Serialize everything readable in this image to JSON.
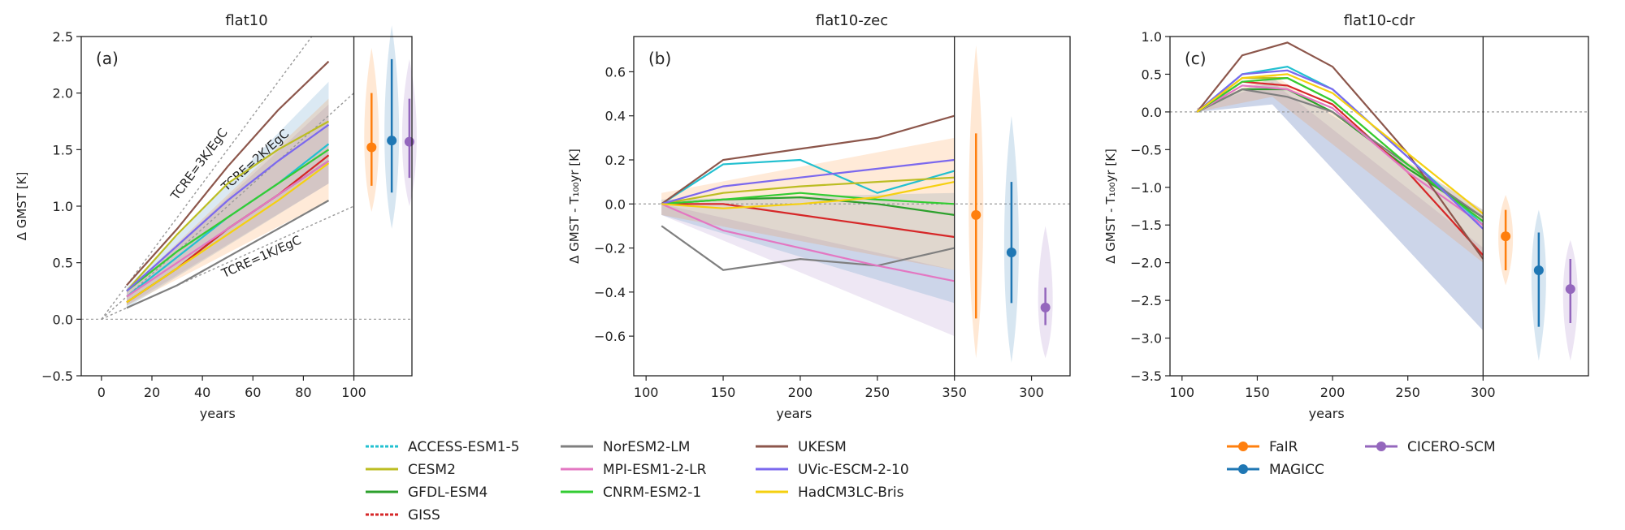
{
  "panels": [
    {
      "title": "flat10",
      "tag": "(a)",
      "ylabel": "Δ GMST [K]",
      "xlabel": "years",
      "xlim": [
        -8,
        100
      ],
      "ylim": [
        -0.5,
        2.5
      ],
      "xticks": [
        "0",
        "20",
        "40",
        "60",
        "80",
        "100"
      ],
      "yticks": [
        "−0.5",
        "0.0",
        "0.5",
        "1.0",
        "1.5",
        "2.0",
        "2.5"
      ],
      "tcre_labels": [
        "TCRE=3K/EgC",
        "TCRE=2K/EgC",
        "TCRE=1K/EgC"
      ]
    },
    {
      "title": "flat10-zec",
      "tag": "(b)",
      "ylabel": "Δ GMST - T₁₀₀yr [K]",
      "xlabel": "years",
      "xlim": [
        92,
        300
      ],
      "ylim": [
        -0.78,
        0.76
      ],
      "xticks": [
        "100",
        "150",
        "200",
        "250",
        "350",
        "300"
      ],
      "yticks": [
        "−0.6",
        "−0.4",
        "−0.2",
        "0.0",
        "0.2",
        "0.4",
        "0.6"
      ]
    },
    {
      "title": "flat10-cdr",
      "tag": "(c)",
      "ylabel": "Δ GMST - T₁₀₀yr [K]",
      "xlabel": "years",
      "xlim": [
        92,
        300
      ],
      "ylim": [
        -3.5,
        1.0
      ],
      "xticks": [
        "100",
        "150",
        "200",
        "250",
        "300"
      ],
      "yticks": [
        "−3.5",
        "−3.0",
        "−2.5",
        "−2.0",
        "−1.5",
        "−1.0",
        "−0.5",
        "0.0",
        "0.5",
        "1.0"
      ]
    }
  ],
  "legend_esm": {
    "placement": "below-left",
    "entries": [
      {
        "name": "ACCESS-ESM1-5",
        "color": "#22c0d0"
      },
      {
        "name": "CESM2",
        "color": "#bcbd22"
      },
      {
        "name": "GFDL-ESM4",
        "color": "#2ca02c"
      },
      {
        "name": "GISS",
        "color": "#d62728"
      },
      {
        "name": "NorESM2-LM",
        "color": "#7f7f7f"
      },
      {
        "name": "MPI-ESM1-2-LR",
        "color": "#e377c2"
      },
      {
        "name": "CNRM-ESM2-1",
        "color": "#33cc33"
      },
      {
        "name": "UKESM",
        "color": "#8c564b"
      },
      {
        "name": "UVic-ESCM-2-10",
        "color": "#7b68ee"
      },
      {
        "name": "HadCM3LC-Bris",
        "color": "#f5d010"
      }
    ]
  },
  "legend_scm": {
    "placement": "below-right",
    "entries": [
      {
        "name": "FaIR",
        "color": "#ff7f0e"
      },
      {
        "name": "MAGICC",
        "color": "#1f77b4"
      },
      {
        "name": "CICERO-SCM",
        "color": "#9467bd"
      }
    ]
  },
  "chart_data": [
    {
      "type": "line",
      "title": "flat10",
      "xlabel": "years",
      "ylabel": "Δ GMST [K]",
      "xlim": [
        -8,
        100
      ],
      "ylim": [
        -0.5,
        2.5
      ],
      "reference_lines": [
        {
          "label": "TCRE=3K/EgC",
          "slope_per_year": 0.03
        },
        {
          "label": "TCRE=2K/EgC",
          "slope_per_year": 0.02
        },
        {
          "label": "TCRE=1K/EgC",
          "slope_per_year": 0.01
        }
      ],
      "series": [
        {
          "name": "ACCESS-ESM1-5",
          "x": [
            10,
            30,
            50,
            70,
            90
          ],
          "y": [
            0.2,
            0.55,
            0.9,
            1.2,
            1.55
          ]
        },
        {
          "name": "CESM2",
          "x": [
            10,
            30,
            50,
            70,
            90
          ],
          "y": [
            0.25,
            0.75,
            1.2,
            1.5,
            1.75
          ]
        },
        {
          "name": "GFDL-ESM4",
          "x": [
            10,
            30,
            50,
            70,
            90
          ],
          "y": [
            0.15,
            0.45,
            0.8,
            1.1,
            1.4
          ]
        },
        {
          "name": "GISS",
          "x": [
            10,
            30,
            50,
            70,
            90
          ],
          "y": [
            0.15,
            0.45,
            0.8,
            1.1,
            1.45
          ]
        },
        {
          "name": "NorESM2-LM",
          "x": [
            10,
            30,
            50,
            70,
            90
          ],
          "y": [
            0.1,
            0.3,
            0.55,
            0.8,
            1.05
          ]
        },
        {
          "name": "MPI-ESM1-2-LR",
          "x": [
            10,
            30,
            50,
            70,
            90
          ],
          "y": [
            0.2,
            0.5,
            0.8,
            1.1,
            1.4
          ]
        },
        {
          "name": "CNRM-ESM2-1",
          "x": [
            10,
            30,
            50,
            70,
            90
          ],
          "y": [
            0.25,
            0.6,
            0.9,
            1.2,
            1.5
          ]
        },
        {
          "name": "UKESM",
          "x": [
            10,
            30,
            50,
            70,
            90
          ],
          "y": [
            0.3,
            0.8,
            1.35,
            1.85,
            2.28
          ]
        },
        {
          "name": "UVic-ESCM-2-10",
          "x": [
            10,
            30,
            50,
            70,
            90
          ],
          "y": [
            0.25,
            0.65,
            1.05,
            1.4,
            1.72
          ]
        },
        {
          "name": "HadCM3LC-Bris",
          "x": [
            10,
            30,
            50,
            70,
            90
          ],
          "y": [
            0.15,
            0.45,
            0.75,
            1.05,
            1.38
          ]
        }
      ],
      "bands": [
        {
          "name": "FaIR",
          "x": [
            10,
            90
          ],
          "lower": [
            0.12,
            1.05
          ],
          "upper": [
            0.25,
            1.95
          ]
        },
        {
          "name": "MAGICC",
          "x": [
            10,
            90
          ],
          "lower": [
            0.1,
            1.2
          ],
          "upper": [
            0.28,
            2.1
          ]
        },
        {
          "name": "CICERO-SCM",
          "x": [
            10,
            90
          ],
          "lower": [
            0.12,
            1.2
          ],
          "upper": [
            0.25,
            1.9
          ]
        }
      ],
      "violins": [
        {
          "name": "FaIR",
          "median": 1.52,
          "range": [
            1.18,
            2.0
          ],
          "extent": [
            0.95,
            2.4
          ]
        },
        {
          "name": "MAGICC",
          "median": 1.58,
          "range": [
            1.12,
            2.3
          ],
          "extent": [
            0.8,
            2.6
          ]
        },
        {
          "name": "CICERO-SCM",
          "median": 1.57,
          "range": [
            1.25,
            1.95
          ],
          "extent": [
            1.0,
            2.3
          ]
        }
      ]
    },
    {
      "type": "line",
      "title": "flat10-zec",
      "xlabel": "years",
      "ylabel": "Δ GMST - T₁₀₀yr [K]",
      "xlim": [
        92,
        300
      ],
      "ylim": [
        -0.78,
        0.76
      ],
      "series": [
        {
          "name": "ACCESS-ESM1-5",
          "x": [
            110,
            150,
            200,
            250,
            300
          ],
          "y": [
            0.0,
            0.18,
            0.2,
            0.05,
            0.15
          ]
        },
        {
          "name": "CESM2",
          "x": [
            110,
            150,
            200,
            250,
            300
          ],
          "y": [
            0.0,
            0.05,
            0.08,
            0.1,
            0.12
          ]
        },
        {
          "name": "GFDL-ESM4",
          "x": [
            110,
            150,
            200,
            250,
            300
          ],
          "y": [
            0.0,
            0.02,
            0.03,
            0.0,
            -0.05
          ]
        },
        {
          "name": "GISS",
          "x": [
            110,
            150,
            200,
            250,
            300
          ],
          "y": [
            0.0,
            0.0,
            -0.05,
            -0.1,
            -0.15
          ]
        },
        {
          "name": "NorESM2-LM",
          "x": [
            110,
            150,
            200,
            250,
            300
          ],
          "y": [
            -0.1,
            -0.3,
            -0.25,
            -0.28,
            -0.2
          ]
        },
        {
          "name": "MPI-ESM1-2-LR",
          "x": [
            110,
            150,
            200,
            250,
            300
          ],
          "y": [
            0.0,
            -0.12,
            -0.2,
            -0.28,
            -0.35
          ]
        },
        {
          "name": "CNRM-ESM2-1",
          "x": [
            110,
            150,
            200,
            250,
            300
          ],
          "y": [
            0.0,
            0.02,
            0.05,
            0.02,
            0.0
          ]
        },
        {
          "name": "UKESM",
          "x": [
            110,
            150,
            200,
            250,
            300
          ],
          "y": [
            0.0,
            0.2,
            0.25,
            0.3,
            0.4
          ]
        },
        {
          "name": "UVic-ESCM-2-10",
          "x": [
            110,
            150,
            200,
            250,
            300
          ],
          "y": [
            0.0,
            0.08,
            0.12,
            0.16,
            0.2
          ]
        },
        {
          "name": "HadCM3LC-Bris",
          "x": [
            110,
            150,
            200,
            250,
            300
          ],
          "y": [
            0.0,
            -0.02,
            0.0,
            0.03,
            0.1
          ]
        }
      ],
      "bands": [
        {
          "name": "FaIR",
          "x": [
            110,
            300
          ],
          "lower": [
            -0.05,
            -0.3
          ],
          "upper": [
            0.05,
            0.3
          ]
        },
        {
          "name": "MAGICC",
          "x": [
            110,
            300
          ],
          "lower": [
            -0.05,
            -0.45
          ],
          "upper": [
            0.02,
            0.05
          ]
        },
        {
          "name": "CICERO-SCM",
          "x": [
            110,
            300
          ],
          "lower": [
            -0.05,
            -0.6
          ],
          "upper": [
            0.0,
            -0.3
          ]
        }
      ],
      "violins": [
        {
          "name": "FaIR",
          "median": -0.05,
          "range": [
            -0.52,
            0.32
          ],
          "extent": [
            -0.7,
            0.72
          ]
        },
        {
          "name": "MAGICC",
          "median": -0.22,
          "range": [
            -0.45,
            0.1
          ],
          "extent": [
            -0.72,
            0.4
          ]
        },
        {
          "name": "CICERO-SCM",
          "median": -0.47,
          "range": [
            -0.55,
            -0.38
          ],
          "extent": [
            -0.7,
            -0.1
          ]
        }
      ]
    },
    {
      "type": "line",
      "title": "flat10-cdr",
      "xlabel": "years",
      "ylabel": "Δ GMST - T₁₀₀yr [K]",
      "xlim": [
        92,
        300
      ],
      "ylim": [
        -3.5,
        1.0
      ],
      "series": [
        {
          "name": "ACCESS-ESM1-5",
          "x": [
            110,
            140,
            170,
            200,
            250,
            300
          ],
          "y": [
            0.0,
            0.5,
            0.6,
            0.3,
            -0.6,
            -1.5
          ]
        },
        {
          "name": "CESM2",
          "x": [
            110,
            140,
            170,
            200,
            250,
            300
          ],
          "y": [
            0.0,
            0.45,
            0.45,
            0.15,
            -0.7,
            -1.45
          ]
        },
        {
          "name": "GFDL-ESM4",
          "x": [
            110,
            140,
            170,
            200,
            250,
            300
          ],
          "y": [
            0.0,
            0.3,
            0.3,
            0.0,
            -0.75,
            -1.4
          ]
        },
        {
          "name": "GISS",
          "x": [
            110,
            140,
            170,
            200,
            250,
            300
          ],
          "y": [
            0.0,
            0.4,
            0.35,
            0.1,
            -0.8,
            -1.9
          ]
        },
        {
          "name": "NorESM2-LM",
          "x": [
            110,
            140,
            170,
            200,
            250,
            300
          ],
          "y": [
            0.0,
            0.3,
            0.2,
            0.0,
            -0.7,
            -1.4
          ]
        },
        {
          "name": "MPI-ESM1-2-LR",
          "x": [
            110,
            140,
            170,
            200,
            250,
            300
          ],
          "y": [
            0.0,
            0.35,
            0.3,
            0.05,
            -0.8,
            -1.5
          ]
        },
        {
          "name": "CNRM-ESM2-1",
          "x": [
            110,
            140,
            170,
            200,
            250,
            300
          ],
          "y": [
            0.0,
            0.4,
            0.45,
            0.15,
            -0.7,
            -1.45
          ]
        },
        {
          "name": "UKESM",
          "x": [
            110,
            140,
            170,
            200,
            250,
            300
          ],
          "y": [
            0.0,
            0.75,
            0.92,
            0.6,
            -0.55,
            -1.95
          ]
        },
        {
          "name": "UVic-ESCM-2-10",
          "x": [
            110,
            140,
            170,
            200,
            250,
            300
          ],
          "y": [
            0.0,
            0.5,
            0.55,
            0.3,
            -0.6,
            -1.55
          ]
        },
        {
          "name": "HadCM3LC-Bris",
          "x": [
            110,
            140,
            170,
            200,
            250,
            300
          ],
          "y": [
            0.0,
            0.45,
            0.5,
            0.25,
            -0.55,
            -1.35
          ]
        }
      ],
      "bands": [
        {
          "name": "FaIR",
          "x": [
            110,
            160,
            300
          ],
          "lower": [
            0.0,
            0.2,
            -2.0
          ],
          "upper": [
            0.05,
            0.5,
            -1.3
          ]
        },
        {
          "name": "MAGICC",
          "x": [
            110,
            160,
            300
          ],
          "lower": [
            0.0,
            0.1,
            -2.9
          ],
          "upper": [
            0.05,
            0.45,
            -1.3
          ]
        },
        {
          "name": "CICERO-SCM",
          "x": [
            110,
            160,
            300
          ],
          "lower": [
            0.0,
            0.1,
            -2.9
          ],
          "upper": [
            0.05,
            0.4,
            -1.8
          ]
        }
      ],
      "violins": [
        {
          "name": "FaIR",
          "median": -1.65,
          "range": [
            -2.1,
            -1.3
          ],
          "extent": [
            -2.3,
            -1.1
          ]
        },
        {
          "name": "MAGICC",
          "median": -2.1,
          "range": [
            -2.85,
            -1.6
          ],
          "extent": [
            -3.3,
            -1.3
          ]
        },
        {
          "name": "CICERO-SCM",
          "median": -2.35,
          "range": [
            -2.8,
            -1.95
          ],
          "extent": [
            -3.3,
            -1.7
          ]
        }
      ]
    }
  ]
}
